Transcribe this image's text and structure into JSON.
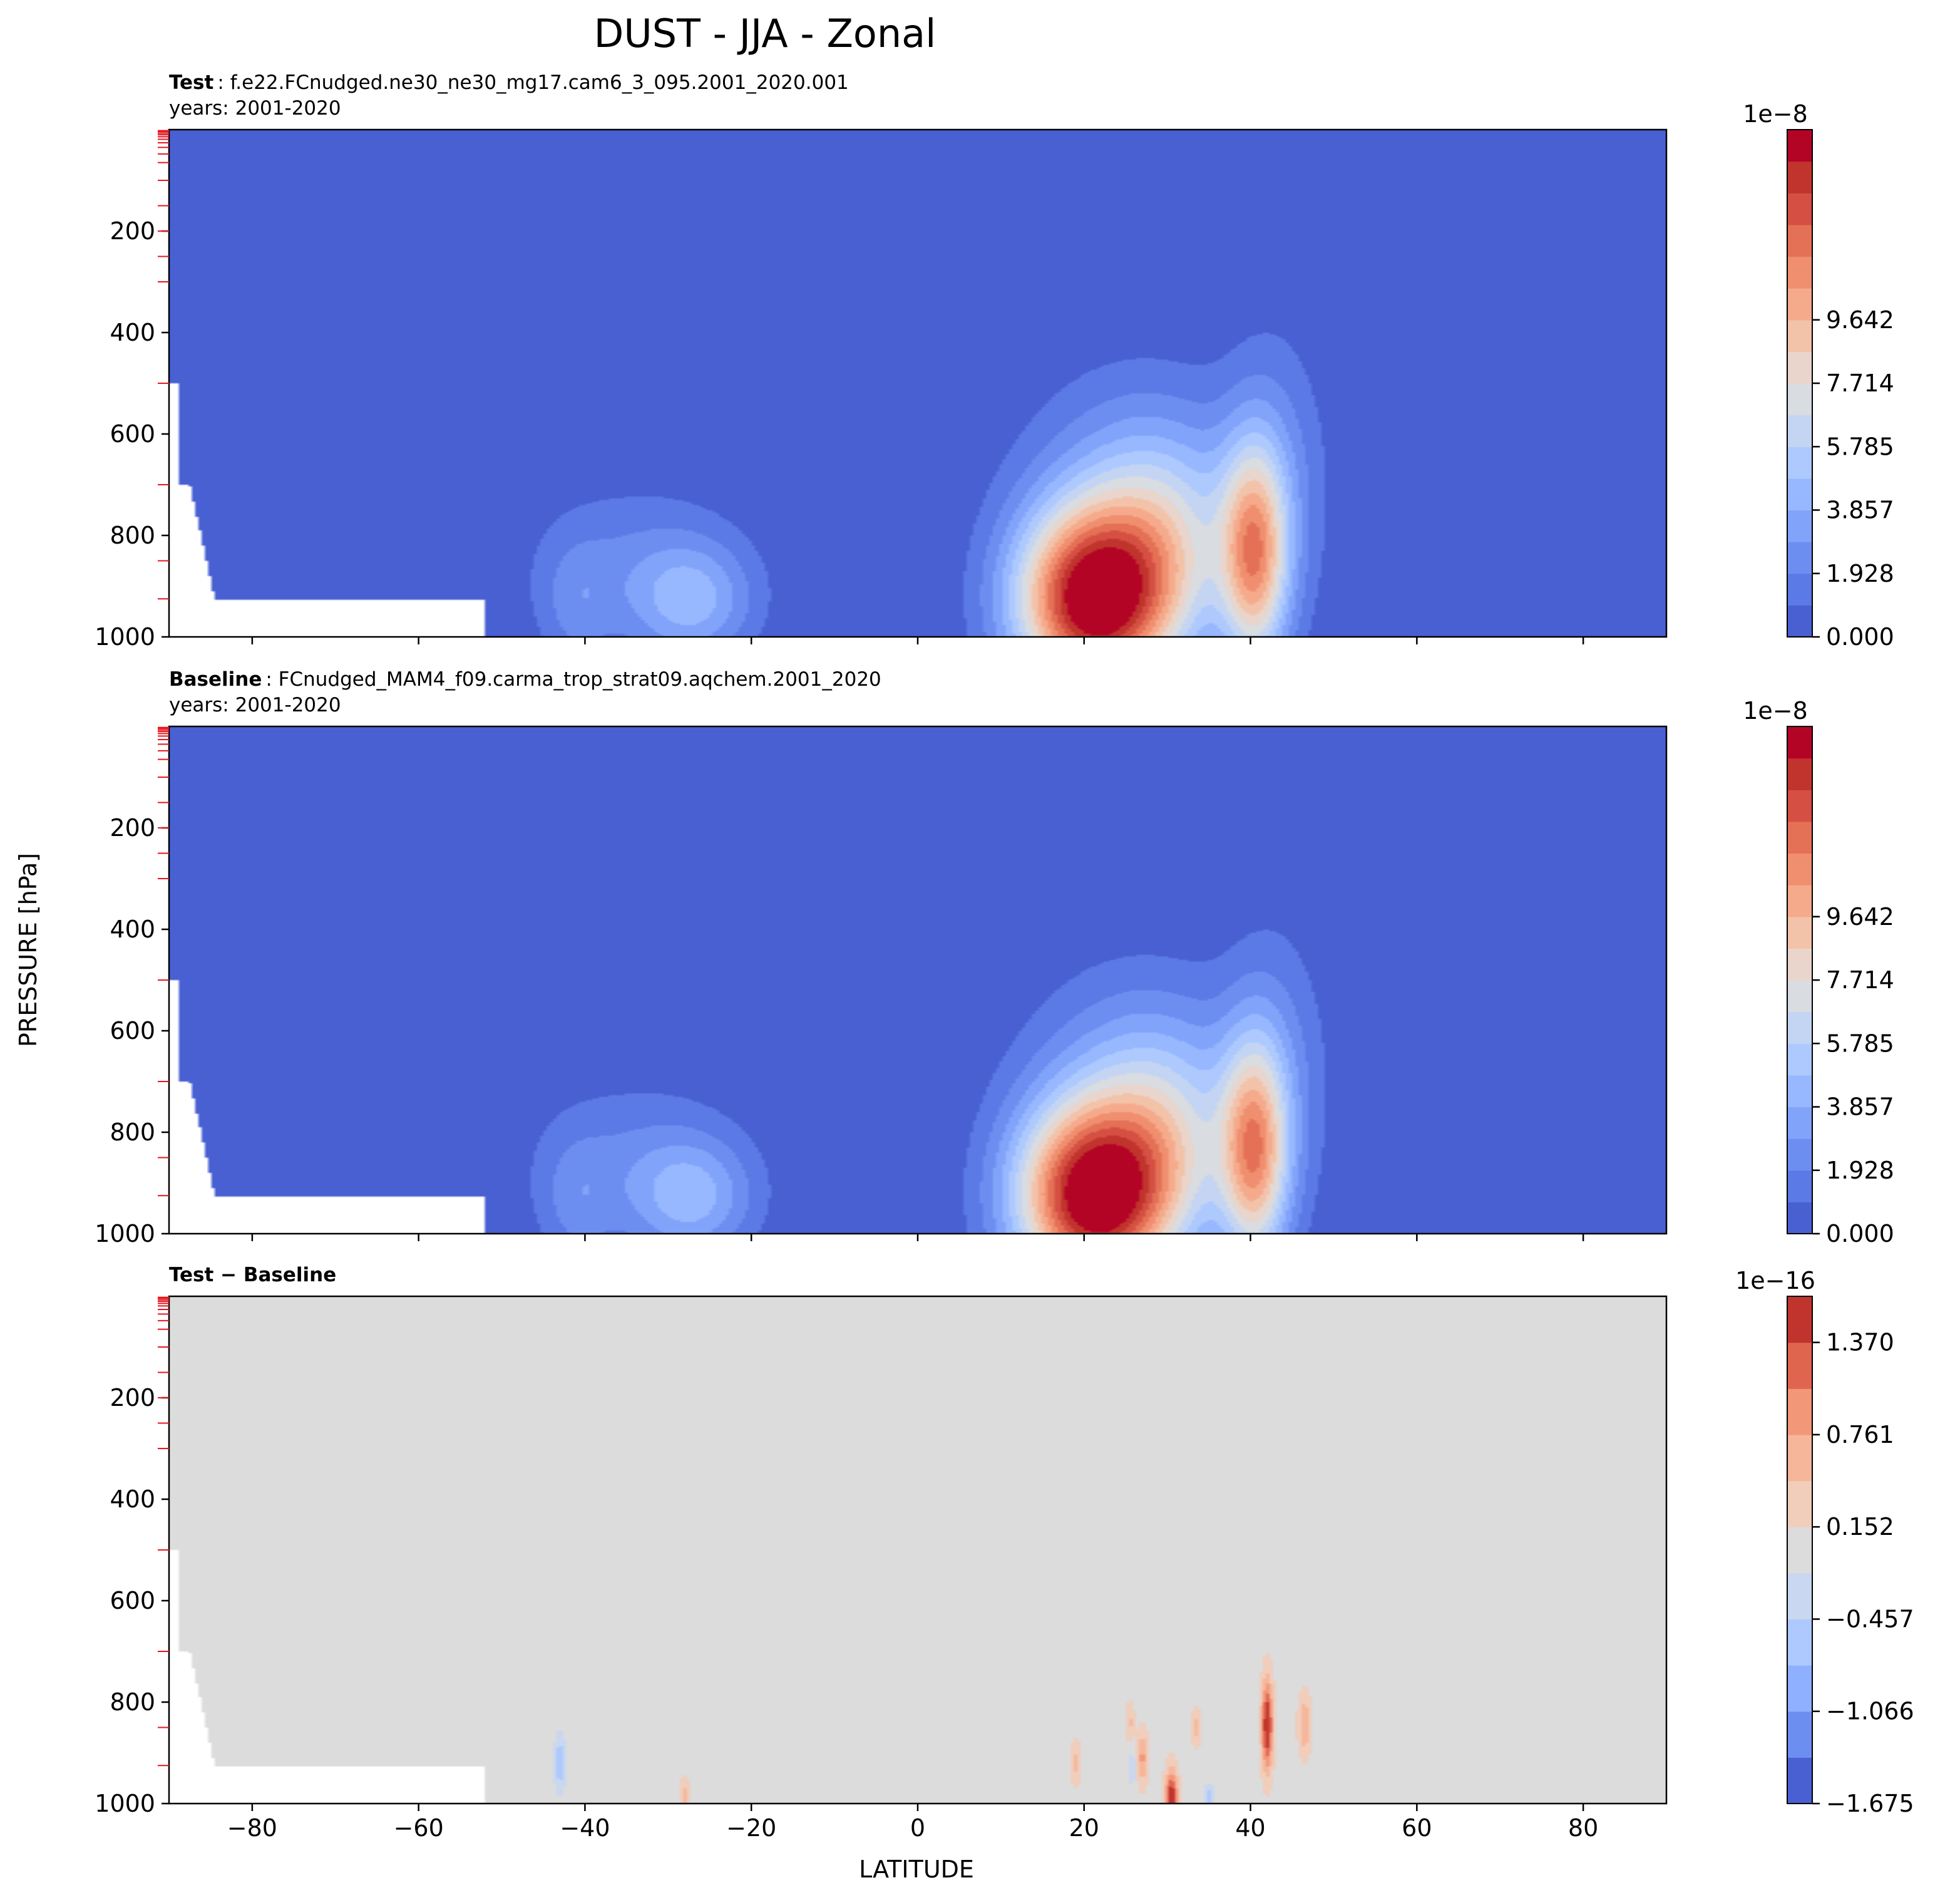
{
  "figure": {
    "title": "DUST - JJA - Zonal",
    "xlabel": "LATITUDE",
    "ylabel": "PRESSURE [hPa]"
  },
  "chart_data": [
    {
      "type": "contour",
      "panel": "test",
      "title_bold": "Test",
      "title_rest": ": f.e22.FCnudged.ne30_ne30_mg17.cam6_3_095.2001_2020.001",
      "subtitle": "years: 2001-2020",
      "x": {
        "range": [
          -90,
          90
        ],
        "ticks": [
          -80,
          -60,
          -40,
          -20,
          0,
          20,
          40,
          60,
          80
        ],
        "tick_labels_shown": false
      },
      "y": {
        "range": [
          0,
          1000
        ],
        "inverted": true,
        "ticks": [
          200,
          400,
          600,
          800,
          1000
        ]
      },
      "colorbar": {
        "exponent": "1e−8",
        "levels": 16,
        "ticks": [
          "0.000",
          "1.928",
          "3.857",
          "5.785",
          "7.714",
          "9.642"
        ],
        "colors": [
          "#4960d3",
          "#5b7ae5",
          "#6d8ef1",
          "#81a3fa",
          "#97b7ff",
          "#adc9fd",
          "#c4d5f3",
          "#d9dce1",
          "#e9d5cb",
          "#f2c2a9",
          "#f6aa8c",
          "#f08f6f",
          "#e47156",
          "#d55042",
          "#c1342d",
          "#b40426"
        ]
      },
      "missing_below_surface": true,
      "dust_maxima": [
        {
          "lat": 21,
          "pressure": 920,
          "level": 15
        },
        {
          "lat": 40,
          "pressure": 840,
          "level": 15
        },
        {
          "lat": -27,
          "pressure": 930,
          "level": 5
        }
      ]
    },
    {
      "type": "contour",
      "panel": "baseline",
      "title_bold": "Baseline",
      "title_rest": ": FCnudged_MAM4_f09.carma_trop_strat09.aqchem.2001_2020",
      "subtitle": "years: 2001-2020",
      "x": {
        "range": [
          -90,
          90
        ],
        "ticks": [
          -80,
          -60,
          -40,
          -20,
          0,
          20,
          40,
          60,
          80
        ],
        "tick_labels_shown": false
      },
      "y": {
        "range": [
          0,
          1000
        ],
        "inverted": true,
        "ticks": [
          200,
          400,
          600,
          800,
          1000
        ]
      },
      "colorbar": {
        "exponent": "1e−8",
        "levels": 16,
        "ticks": [
          "0.000",
          "1.928",
          "3.857",
          "5.785",
          "7.714",
          "9.642"
        ],
        "colors": [
          "#4960d3",
          "#5b7ae5",
          "#6d8ef1",
          "#81a3fa",
          "#97b7ff",
          "#adc9fd",
          "#c4d5f3",
          "#d9dce1",
          "#e9d5cb",
          "#f2c2a9",
          "#f6aa8c",
          "#f08f6f",
          "#e47156",
          "#d55042",
          "#c1342d",
          "#b40426"
        ]
      },
      "missing_below_surface": true
    },
    {
      "type": "contour",
      "panel": "difference",
      "title_bold": "Test − Baseline",
      "title_rest": "",
      "subtitle": "",
      "x": {
        "range": [
          -90,
          90
        ],
        "ticks": [
          -80,
          -60,
          -40,
          -20,
          0,
          20,
          40,
          60,
          80
        ],
        "tick_labels": [
          "−80",
          "−60",
          "−40",
          "−20",
          "0",
          "20",
          "40",
          "60",
          "80"
        ]
      },
      "y": {
        "range": [
          0,
          1000
        ],
        "inverted": true,
        "ticks": [
          200,
          400,
          600,
          800,
          1000
        ]
      },
      "colorbar": {
        "exponent": "1e−16",
        "levels": 11,
        "ticks": [
          "−1.675",
          "−1.066",
          "−0.457",
          "0.152",
          "0.761",
          "1.370"
        ],
        "colors": [
          "#4960d3",
          "#6d8ef1",
          "#8eb0fe",
          "#adc9fd",
          "#c9d7f0",
          "#dcdcdc",
          "#f1cdbb",
          "#f6b69a",
          "#f39779",
          "#e0654f",
          "#c1342d"
        ]
      },
      "background_value": 0.0,
      "missing_below_surface": true
    }
  ]
}
